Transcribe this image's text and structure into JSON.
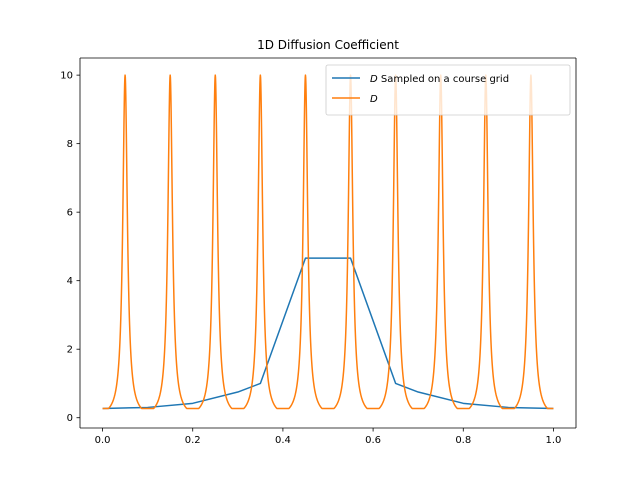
{
  "chart_data": {
    "type": "line",
    "title": "1D Diffusion Coefficient",
    "xlabel": "",
    "ylabel": "",
    "xlim": [
      -0.05,
      1.05
    ],
    "ylim": [
      -0.3,
      10.5
    ],
    "xticks": [
      0.0,
      0.2,
      0.4,
      0.6,
      0.8,
      1.0
    ],
    "xtick_labels": [
      "0.0",
      "0.2",
      "0.4",
      "0.6",
      "0.8",
      "1.0"
    ],
    "yticks": [
      0,
      2,
      4,
      6,
      8,
      10
    ],
    "ytick_labels": [
      "0",
      "2",
      "4",
      "6",
      "8",
      "10"
    ],
    "grid": false,
    "legend_position": "top-right",
    "series": [
      {
        "name": "D Sampled on a course grid",
        "name_italic_part": "D",
        "name_rest": " Sampled on a course grid",
        "color": "#1f77b4",
        "x": [
          0.0,
          0.1,
          0.2,
          0.3,
          0.35,
          0.45,
          0.55,
          0.65,
          0.7,
          0.8,
          0.9,
          1.0
        ],
        "y": [
          0.27,
          0.3,
          0.42,
          0.75,
          1.0,
          4.66,
          4.66,
          1.0,
          0.75,
          0.42,
          0.3,
          0.27
        ]
      },
      {
        "name": "D",
        "name_italic_part": "D",
        "name_rest": "",
        "color": "#ff7f0e",
        "peak_centers": [
          0.05,
          0.15,
          0.25,
          0.35,
          0.45,
          0.55,
          0.65,
          0.75,
          0.85,
          0.95
        ],
        "peak_max": 10.0,
        "base_min": 0.27
      }
    ]
  }
}
